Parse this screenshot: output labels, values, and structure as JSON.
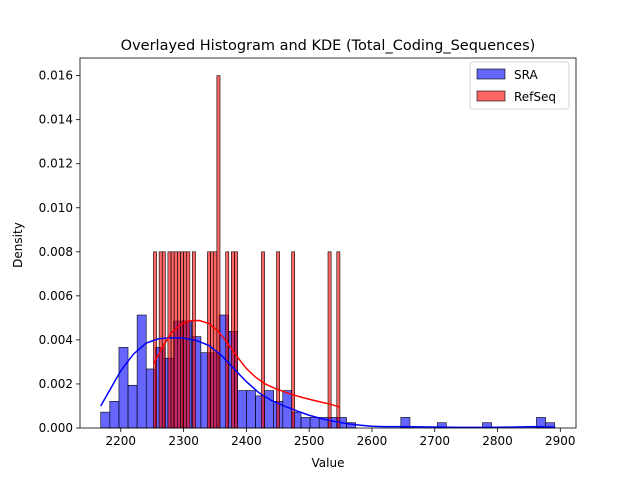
{
  "chart_data": {
    "type": "bar",
    "title": "Overlayed Histogram and KDE (Total_Coding_Sequences)",
    "xlabel": "Value",
    "ylabel": "Density",
    "xlim": [
      2135,
      2925
    ],
    "ylim": [
      0,
      0.0168
    ],
    "xticks": [
      2200,
      2300,
      2400,
      2500,
      2600,
      2700,
      2800,
      2900
    ],
    "yticks": [
      0.0,
      0.002,
      0.004,
      0.006,
      0.008,
      0.01,
      0.012,
      0.014,
      0.016
    ],
    "ytick_labels": [
      "0.000",
      "0.002",
      "0.004",
      "0.006",
      "0.008",
      "0.010",
      "0.012",
      "0.014",
      "0.016"
    ],
    "legend_position": "top-right",
    "series": [
      {
        "name": "SRA",
        "kind": "histogram",
        "color": "#0000ff",
        "bins": [
          {
            "x0": 2168,
            "x1": 2182.5,
            "value": 0.00072
          },
          {
            "x0": 2182.5,
            "x1": 2197,
            "value": 0.00121
          },
          {
            "x0": 2197,
            "x1": 2211.5,
            "value": 0.00366
          },
          {
            "x0": 2211.5,
            "x1": 2226,
            "value": 0.00194
          },
          {
            "x0": 2226,
            "x1": 2240.5,
            "value": 0.00513
          },
          {
            "x0": 2240.5,
            "x1": 2255,
            "value": 0.00268
          },
          {
            "x0": 2255,
            "x1": 2269.5,
            "value": 0.00366
          },
          {
            "x0": 2269.5,
            "x1": 2284,
            "value": 0.00317
          },
          {
            "x0": 2284,
            "x1": 2298.5,
            "value": 0.00486
          },
          {
            "x0": 2298.5,
            "x1": 2313,
            "value": 0.00486
          },
          {
            "x0": 2313,
            "x1": 2327.5,
            "value": 0.00415
          },
          {
            "x0": 2327.5,
            "x1": 2342,
            "value": 0.00342
          },
          {
            "x0": 2342,
            "x1": 2356.5,
            "value": 0.00342
          },
          {
            "x0": 2356.5,
            "x1": 2371,
            "value": 0.00513
          },
          {
            "x0": 2371,
            "x1": 2385.5,
            "value": 0.00439
          },
          {
            "x0": 2385.5,
            "x1": 2400,
            "value": 0.0017
          },
          {
            "x0": 2400,
            "x1": 2414.5,
            "value": 0.0017
          },
          {
            "x0": 2414.5,
            "x1": 2429,
            "value": 0.00146
          },
          {
            "x0": 2429,
            "x1": 2443.5,
            "value": 0.0017
          },
          {
            "x0": 2443.5,
            "x1": 2458,
            "value": 0.00121
          },
          {
            "x0": 2458,
            "x1": 2472.5,
            "value": 0.0017
          },
          {
            "x0": 2472.5,
            "x1": 2487,
            "value": 0.00072
          },
          {
            "x0": 2487,
            "x1": 2501.5,
            "value": 0.00048
          },
          {
            "x0": 2501.5,
            "x1": 2516,
            "value": 0.00048
          },
          {
            "x0": 2516,
            "x1": 2530.5,
            "value": 0.00048
          },
          {
            "x0": 2530.5,
            "x1": 2545,
            "value": 0.00048
          },
          {
            "x0": 2545,
            "x1": 2559.5,
            "value": 0.00048
          },
          {
            "x0": 2559.5,
            "x1": 2574,
            "value": 0.00024
          },
          {
            "x0": 2646,
            "x1": 2660.5,
            "value": 0.00048
          },
          {
            "x0": 2704,
            "x1": 2718.5,
            "value": 0.00024
          },
          {
            "x0": 2776,
            "x1": 2790.5,
            "value": 0.00024
          },
          {
            "x0": 2862,
            "x1": 2876.5,
            "value": 0.00048
          },
          {
            "x0": 2876.5,
            "x1": 2891,
            "value": 0.00024
          }
        ],
        "kde": {
          "x": [
            2168,
            2180,
            2200,
            2220,
            2240,
            2260,
            2280,
            2300,
            2320,
            2340,
            2360,
            2380,
            2400,
            2420,
            2440,
            2460,
            2480,
            2500,
            2520,
            2540,
            2560,
            2580,
            2600,
            2620,
            2650,
            2680,
            2710,
            2740,
            2780,
            2820,
            2860,
            2880,
            2892
          ],
          "y": [
            0.001,
            0.0016,
            0.0026,
            0.00335,
            0.00385,
            0.00405,
            0.0041,
            0.00408,
            0.00398,
            0.00375,
            0.0033,
            0.0027,
            0.0021,
            0.0016,
            0.00125,
            0.001,
            0.00078,
            0.00058,
            0.00042,
            0.0003,
            0.0002,
            0.00013,
            8e-05,
            6e-05,
            6e-05,
            5e-05,
            4e-05,
            3e-05,
            3e-05,
            4e-05,
            6e-05,
            5e-05,
            3e-05
          ]
        }
      },
      {
        "name": "RefSeq",
        "kind": "histogram",
        "color": "#ff0000",
        "bins": [
          {
            "x0": 2252,
            "x1": 2257,
            "value": 0.008
          },
          {
            "x0": 2261,
            "x1": 2266,
            "value": 0.008
          },
          {
            "x0": 2266,
            "x1": 2271,
            "value": 0.008
          },
          {
            "x0": 2275,
            "x1": 2280,
            "value": 0.008
          },
          {
            "x0": 2280,
            "x1": 2285,
            "value": 0.008
          },
          {
            "x0": 2285,
            "x1": 2290,
            "value": 0.008
          },
          {
            "x0": 2290,
            "x1": 2295,
            "value": 0.008
          },
          {
            "x0": 2295,
            "x1": 2300,
            "value": 0.008
          },
          {
            "x0": 2300,
            "x1": 2305,
            "value": 0.008
          },
          {
            "x0": 2305,
            "x1": 2310,
            "value": 0.008
          },
          {
            "x0": 2314,
            "x1": 2319,
            "value": 0.008
          },
          {
            "x0": 2338,
            "x1": 2343,
            "value": 0.008
          },
          {
            "x0": 2343,
            "x1": 2348,
            "value": 0.008
          },
          {
            "x0": 2348,
            "x1": 2353,
            "value": 0.008
          },
          {
            "x0": 2353,
            "x1": 2358,
            "value": 0.016
          },
          {
            "x0": 2367,
            "x1": 2372,
            "value": 0.008
          },
          {
            "x0": 2376,
            "x1": 2381,
            "value": 0.008
          },
          {
            "x0": 2381,
            "x1": 2386,
            "value": 0.008
          },
          {
            "x0": 2424,
            "x1": 2429,
            "value": 0.008
          },
          {
            "x0": 2448,
            "x1": 2453,
            "value": 0.008
          },
          {
            "x0": 2472,
            "x1": 2477,
            "value": 0.008
          },
          {
            "x0": 2530,
            "x1": 2535,
            "value": 0.008
          },
          {
            "x0": 2544,
            "x1": 2549,
            "value": 0.008
          }
        ],
        "kde": {
          "x": [
            2252,
            2265,
            2280,
            2295,
            2310,
            2325,
            2340,
            2355,
            2370,
            2385,
            2400,
            2415,
            2430,
            2445,
            2460,
            2475,
            2490,
            2505,
            2520,
            2535,
            2549
          ],
          "y": [
            0.0029,
            0.0036,
            0.0043,
            0.0047,
            0.00487,
            0.00488,
            0.00475,
            0.0044,
            0.00385,
            0.00325,
            0.0027,
            0.0023,
            0.002,
            0.0018,
            0.00165,
            0.0015,
            0.00138,
            0.00127,
            0.00117,
            0.00107,
            0.00095
          ]
        }
      }
    ]
  }
}
